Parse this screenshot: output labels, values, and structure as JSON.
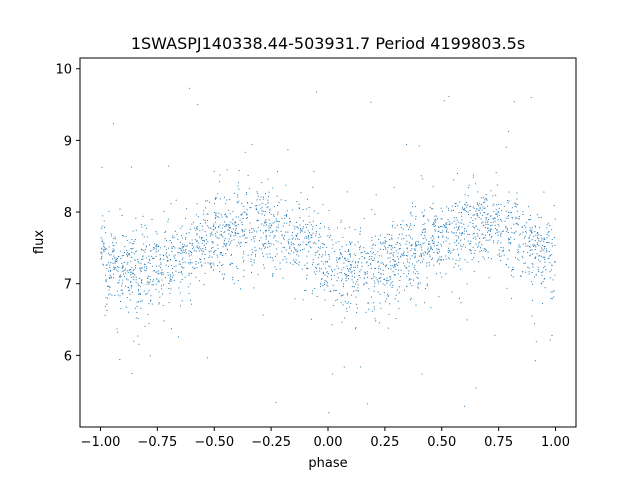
{
  "chart_data": {
    "type": "scatter",
    "title": "1SWASPJ140338.44-503931.7 Period 4199803.5s",
    "xlabel": "phase",
    "ylabel": "flux",
    "xlim": [
      -1.09,
      1.09
    ],
    "ylim": [
      5.0,
      10.15
    ],
    "xticks": [
      -1.0,
      -0.75,
      -0.5,
      -0.25,
      0.0,
      0.25,
      0.5,
      0.75,
      1.0
    ],
    "xtick_labels": [
      "−1.00",
      "−0.75",
      "−0.50",
      "−0.25",
      "0.00",
      "0.25",
      "0.50",
      "0.75",
      "1.00"
    ],
    "yticks": [
      6,
      7,
      8,
      9,
      10
    ],
    "ytick_labels": [
      "6",
      "7",
      "8",
      "9",
      "10"
    ],
    "grid": false,
    "series": [
      {
        "color": "#1f77b4",
        "marker": "point",
        "x_range": [
          -1.0,
          1.0
        ],
        "y_range": [
          5.2,
          9.85
        ],
        "period_in_phase": 1.0,
        "typical_flux": 7.5,
        "max_flux_phase": [
          0.62,
          -0.38
        ],
        "min_flux_phase": [
          0.2,
          -0.8
        ]
      }
    ]
  }
}
